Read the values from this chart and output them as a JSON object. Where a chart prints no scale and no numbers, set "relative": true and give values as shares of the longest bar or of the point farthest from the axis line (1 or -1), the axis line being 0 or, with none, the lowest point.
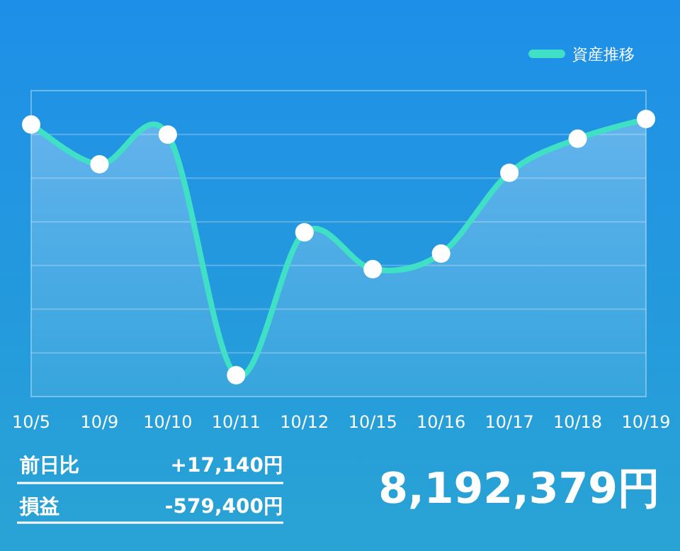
{
  "chart_data": {
    "type": "area",
    "relative": true,
    "categories": [
      "10/5",
      "10/9",
      "10/10",
      "10/11",
      "10/12",
      "10/15",
      "10/16",
      "10/17",
      "10/18",
      "10/19"
    ],
    "series": [
      {
        "name": "資産推移",
        "color": "#3fe0c5",
        "values": [
          0.98,
          0.837,
          0.944,
          0.077,
          0.592,
          0.459,
          0.515,
          0.806,
          0.929,
          1
        ]
      }
    ],
    "grid": "y",
    "legend": "top right",
    "marker": "circle",
    "annotations": [
      "前日比",
      "+17,140円",
      "損益",
      "-579,400円",
      "8,192,379円"
    ]
  }
}
